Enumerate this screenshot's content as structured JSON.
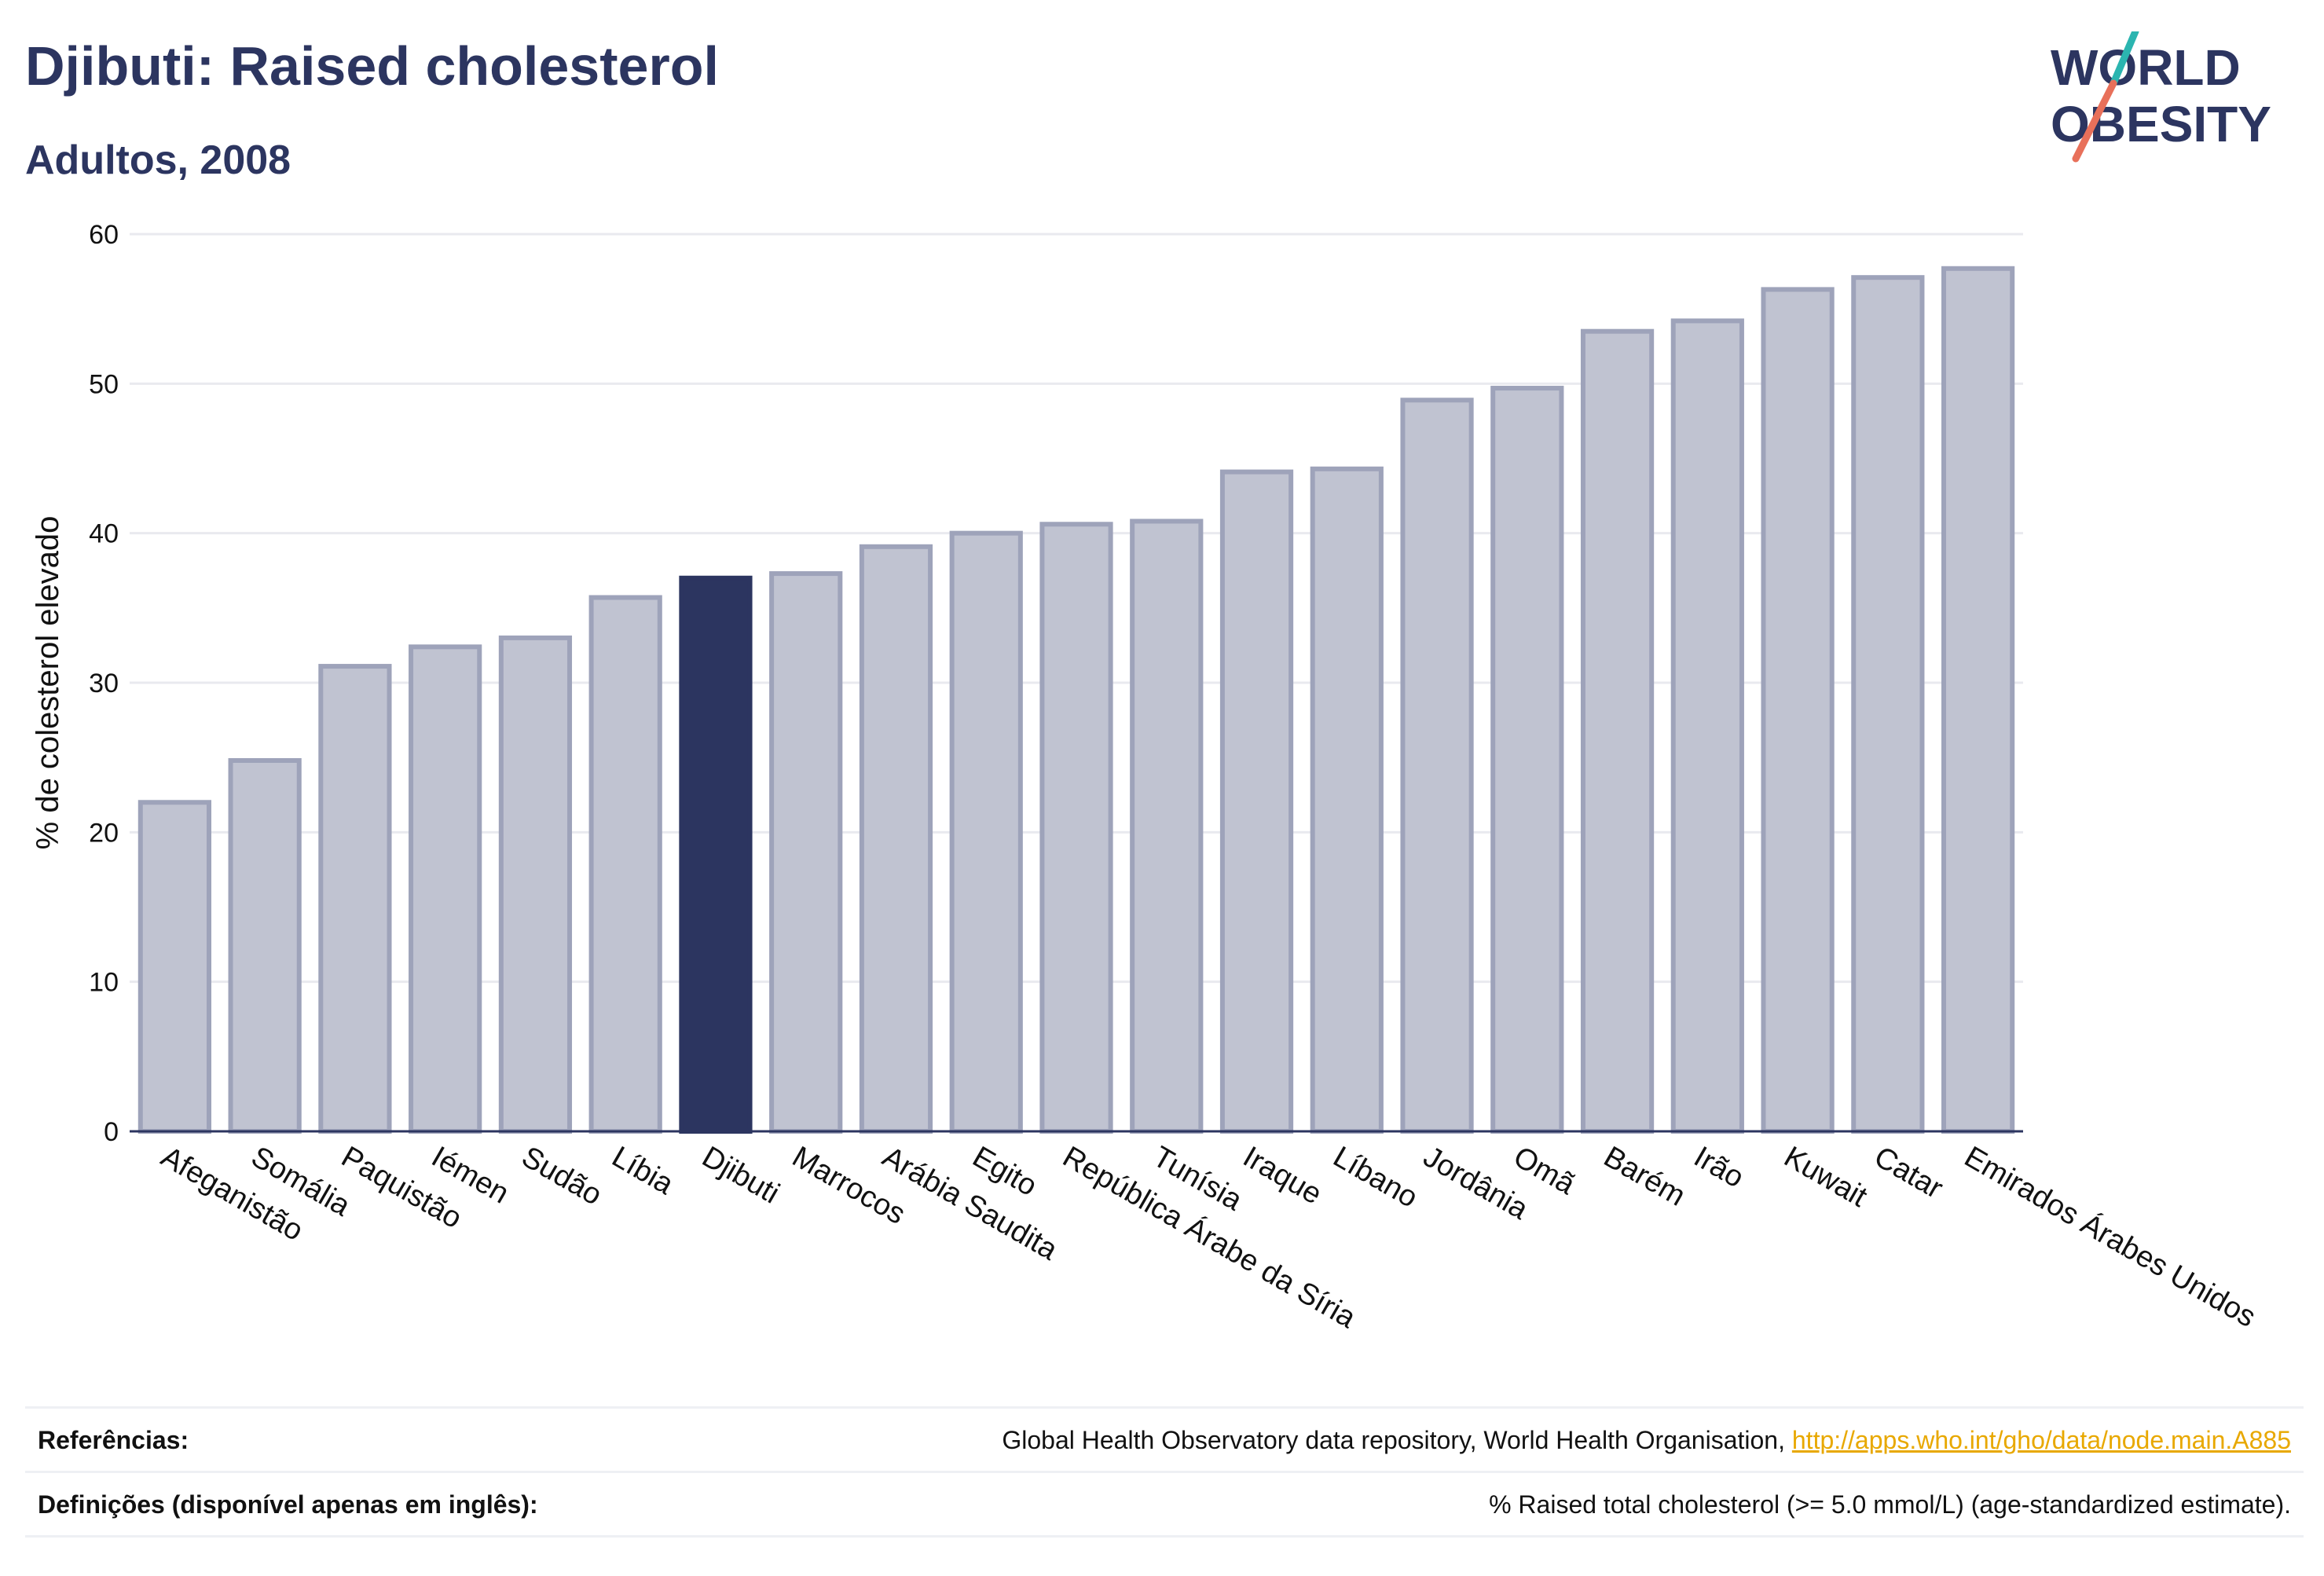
{
  "header": {
    "title": "Djibuti: Raised cholesterol",
    "subtitle": "Adultos, 2008"
  },
  "logo": {
    "line1": "WORLD",
    "line2": "OBESITY",
    "colors": {
      "text": "#2c3560",
      "slash_teal": "#2bb5b0",
      "slash_coral": "#e8705a"
    }
  },
  "colors": {
    "bar_fill": "#c0c3d1",
    "bar_stroke": "#9ea3ba",
    "highlight_fill": "#2c3560",
    "grid": "#e9eaef",
    "axis": "#2c3560"
  },
  "chart_data": {
    "type": "bar",
    "ylabel": "% de colesterol elevado",
    "ylim": [
      0,
      60
    ],
    "yticks": [
      0,
      10,
      20,
      30,
      40,
      50,
      60
    ],
    "grid": true,
    "highlight": "Djibuti",
    "categories": [
      "Afeganistão",
      "Somália",
      "Paquistão",
      "Iémen",
      "Sudão",
      "Líbia",
      "Djibuti",
      "Marrocos",
      "Arábia Saudita",
      "Egito",
      "República Árabe da Síria",
      "Tunísia",
      "Iraque",
      "Líbano",
      "Jordânia",
      "Omã",
      "Barém",
      "Irão",
      "Kuwait",
      "Catar",
      "Emirados Árabes Unidos"
    ],
    "values": [
      22.0,
      24.8,
      31.1,
      32.4,
      33.0,
      35.7,
      37.0,
      37.3,
      39.1,
      40.0,
      40.6,
      40.8,
      44.1,
      44.3,
      48.9,
      49.7,
      53.5,
      54.2,
      56.3,
      57.1,
      57.7
    ]
  },
  "footer": {
    "references_label": "Referências:",
    "references_text": "Global Health Observatory data repository, World Health Organisation, ",
    "references_link": "http://apps.who.int/gho/data/node.main.A885",
    "definitions_label": "Definições (disponível apenas em inglês):",
    "definitions_text": "% Raised total cholesterol (>= 5.0 mmol/L) (age-standardized estimate)."
  }
}
